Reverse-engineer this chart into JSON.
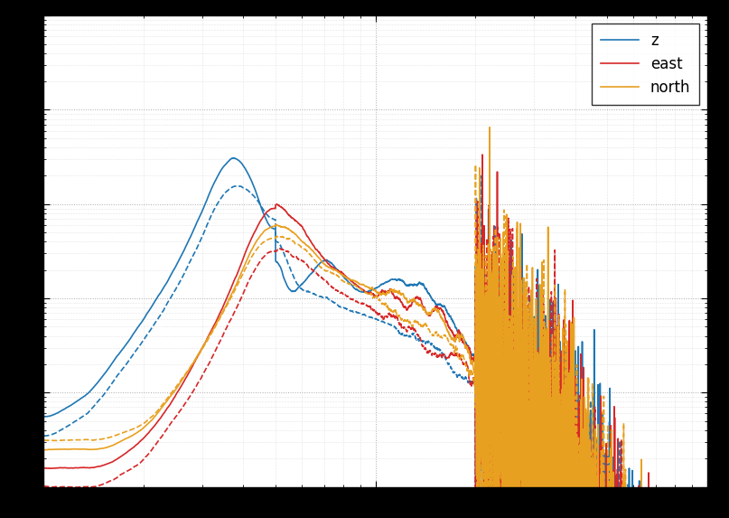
{
  "colors": {
    "z": "#1f77b4",
    "east": "#d62728",
    "north": "#e8a020"
  },
  "legend_labels": [
    "z",
    "east",
    "north"
  ],
  "xlim": [
    1,
    100
  ],
  "ylim": [
    1e-09,
    0.0001
  ],
  "figure_bg": "#000000",
  "axes_bg": "#ffffff",
  "grid_color": "#bbbbbb",
  "grid_style": ":",
  "linewidth": 1.2
}
